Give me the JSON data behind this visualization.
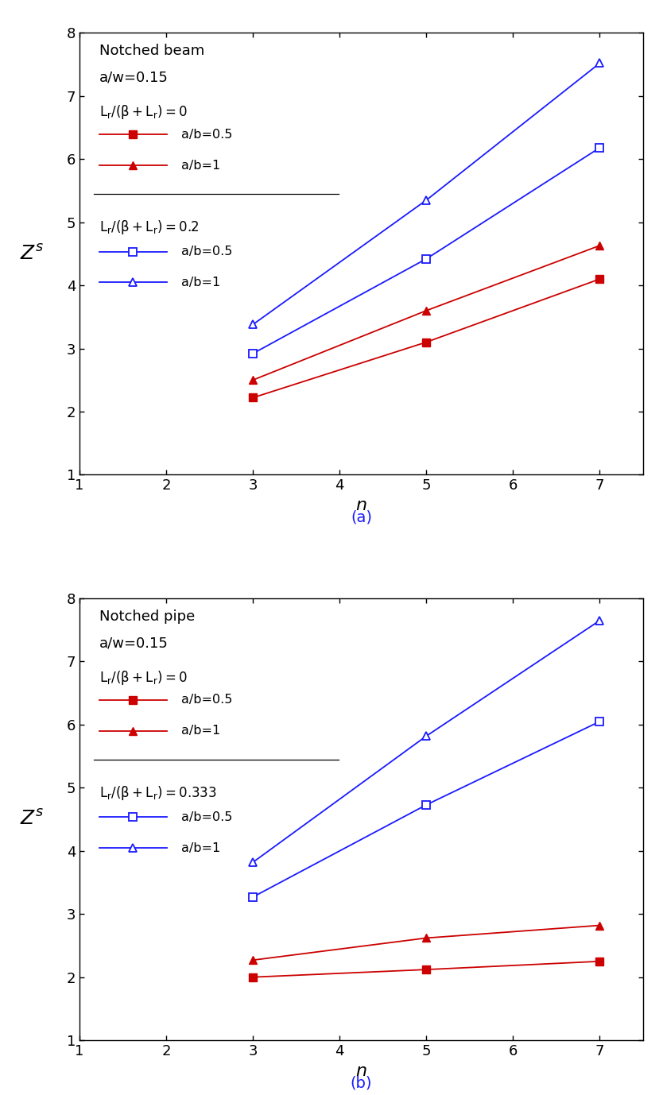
{
  "n_values": [
    3,
    5,
    7
  ],
  "panel_a": {
    "title": "Notched beam",
    "subtitle": "a/w=0.15",
    "label1": "L_r/(β+L_r)=0",
    "label2": "L_r/(β+L_r)=0.2",
    "series": {
      "red_solid_square": [
        2.22,
        3.1,
        4.1
      ],
      "red_solid_triangle": [
        2.5,
        3.6,
        4.63
      ],
      "blue_open_square": [
        2.92,
        4.42,
        6.18
      ],
      "blue_open_triangle": [
        3.38,
        5.35,
        7.52
      ]
    }
  },
  "panel_b": {
    "title": "Notched pipe",
    "subtitle": "a/w=0.15",
    "label1": "L_r/(β+L_r)=0",
    "label2": "L_r/(β+L_r)=0.333",
    "series": {
      "red_solid_square": [
        2.0,
        2.12,
        2.25
      ],
      "red_solid_triangle": [
        2.27,
        2.62,
        2.82
      ],
      "blue_open_square": [
        3.27,
        4.73,
        6.05
      ],
      "blue_open_triangle": [
        3.82,
        5.82,
        7.65
      ]
    }
  },
  "red_color": "#cc0000",
  "blue_color": "#1a1aff",
  "xlim": [
    1,
    7.5
  ],
  "ylim": [
    1,
    8
  ],
  "xticks": [
    1,
    2,
    3,
    4,
    5,
    6,
    7
  ],
  "yticks": [
    1,
    2,
    3,
    4,
    5,
    6,
    7,
    8
  ],
  "xlabel": "n",
  "marker_size": 7,
  "linewidth": 1.3,
  "caption_a": "(a)",
  "caption_b": "(b)"
}
